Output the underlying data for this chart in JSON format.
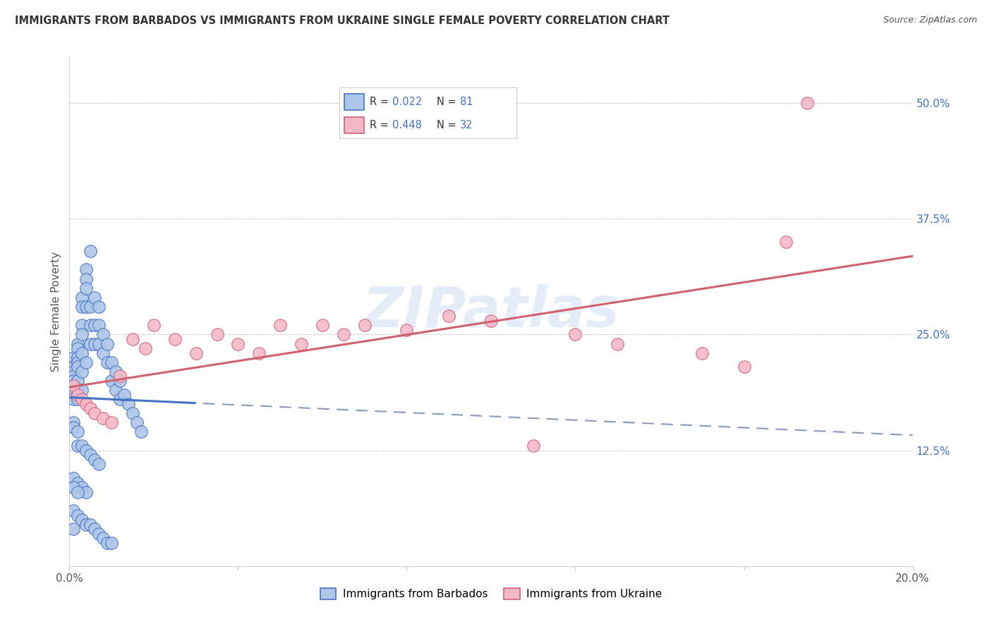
{
  "title": "IMMIGRANTS FROM BARBADOS VS IMMIGRANTS FROM UKRAINE SINGLE FEMALE POVERTY CORRELATION CHART",
  "source": "Source: ZipAtlas.com",
  "ylabel": "Single Female Poverty",
  "legend_label_1": "Immigrants from Barbados",
  "legend_label_2": "Immigrants from Ukraine",
  "r1": 0.022,
  "n1": 81,
  "r2": 0.448,
  "n2": 32,
  "color_barbados_fill": "#aec6e8",
  "color_barbados_edge": "#4472C4",
  "color_ukraine_fill": "#f5b8c8",
  "color_ukraine_edge": "#d0607a",
  "color_barbados_line": "#4472C4",
  "color_ukraine_line": "#d06070",
  "color_dashed_line": "#8899bb",
  "xlim": [
    0.0,
    0.2
  ],
  "ylim": [
    0.0,
    0.55
  ],
  "y_ticks_right": [
    0.0,
    0.125,
    0.25,
    0.375,
    0.5
  ],
  "y_tick_labels_right": [
    "",
    "12.5%",
    "25.0%",
    "37.5%",
    "50.0%"
  ],
  "barbados_x": [
    0.001,
    0.001,
    0.001,
    0.001,
    0.001,
    0.001,
    0.001,
    0.001,
    0.001,
    0.001,
    0.002,
    0.002,
    0.002,
    0.002,
    0.002,
    0.002,
    0.002,
    0.002,
    0.003,
    0.003,
    0.003,
    0.003,
    0.003,
    0.003,
    0.003,
    0.004,
    0.004,
    0.004,
    0.004,
    0.004,
    0.005,
    0.005,
    0.005,
    0.005,
    0.006,
    0.006,
    0.006,
    0.007,
    0.007,
    0.007,
    0.008,
    0.008,
    0.009,
    0.009,
    0.01,
    0.01,
    0.011,
    0.011,
    0.012,
    0.012,
    0.013,
    0.014,
    0.015,
    0.016,
    0.017,
    0.001,
    0.001,
    0.002,
    0.002,
    0.003,
    0.004,
    0.005,
    0.006,
    0.007,
    0.001,
    0.002,
    0.003,
    0.004,
    0.001,
    0.002,
    0.001,
    0.002,
    0.003,
    0.004,
    0.005,
    0.006,
    0.007,
    0.008,
    0.009,
    0.01,
    0.001
  ],
  "barbados_y": [
    0.22,
    0.225,
    0.215,
    0.21,
    0.205,
    0.2,
    0.195,
    0.19,
    0.185,
    0.18,
    0.24,
    0.235,
    0.225,
    0.22,
    0.215,
    0.2,
    0.19,
    0.18,
    0.29,
    0.28,
    0.26,
    0.25,
    0.23,
    0.21,
    0.19,
    0.32,
    0.31,
    0.3,
    0.28,
    0.22,
    0.34,
    0.28,
    0.26,
    0.24,
    0.29,
    0.26,
    0.24,
    0.28,
    0.26,
    0.24,
    0.25,
    0.23,
    0.24,
    0.22,
    0.22,
    0.2,
    0.21,
    0.19,
    0.2,
    0.18,
    0.185,
    0.175,
    0.165,
    0.155,
    0.145,
    0.155,
    0.15,
    0.145,
    0.13,
    0.13,
    0.125,
    0.12,
    0.115,
    0.11,
    0.095,
    0.09,
    0.085,
    0.08,
    0.085,
    0.08,
    0.06,
    0.055,
    0.05,
    0.045,
    0.045,
    0.04,
    0.035,
    0.03,
    0.025,
    0.025,
    0.04
  ],
  "ukraine_x": [
    0.001,
    0.002,
    0.003,
    0.004,
    0.005,
    0.006,
    0.008,
    0.01,
    0.012,
    0.015,
    0.018,
    0.02,
    0.025,
    0.03,
    0.035,
    0.04,
    0.045,
    0.05,
    0.055,
    0.06,
    0.065,
    0.07,
    0.08,
    0.09,
    0.1,
    0.11,
    0.12,
    0.13,
    0.15,
    0.16,
    0.17,
    0.175
  ],
  "ukraine_y": [
    0.195,
    0.185,
    0.18,
    0.175,
    0.17,
    0.165,
    0.16,
    0.155,
    0.205,
    0.245,
    0.235,
    0.26,
    0.245,
    0.23,
    0.25,
    0.24,
    0.23,
    0.26,
    0.24,
    0.26,
    0.25,
    0.26,
    0.255,
    0.27,
    0.265,
    0.13,
    0.25,
    0.24,
    0.23,
    0.215,
    0.35,
    0.5
  ],
  "watermark": "ZIPatlas",
  "background_color": "#ffffff",
  "grid_color": "#cccccc"
}
